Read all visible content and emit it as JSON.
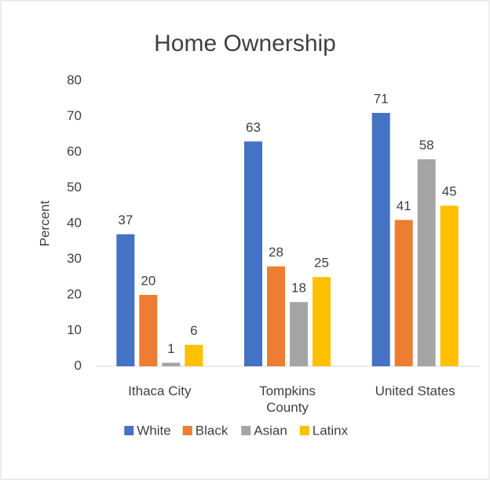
{
  "chart_data": {
    "type": "bar",
    "title": "Home Ownership",
    "y_label": "Percent",
    "categories": [
      "Ithaca City",
      "Tompkins County",
      "United States"
    ],
    "series": [
      {
        "name": "White",
        "color": "#4472c4",
        "values": [
          37,
          63,
          71
        ]
      },
      {
        "name": "Black",
        "color": "#ed7d31",
        "values": [
          20,
          28,
          41
        ]
      },
      {
        "name": "Asian",
        "color": "#a5a5a5",
        "values": [
          1,
          18,
          58
        ]
      },
      {
        "name": "Latinx",
        "color": "#ffc000",
        "values": [
          6,
          25,
          45
        ]
      }
    ],
    "ylim": [
      0,
      80
    ],
    "yticks": [
      0,
      10,
      20,
      30,
      40,
      50,
      60,
      70,
      80
    ],
    "grid": false,
    "legend": "bottom"
  }
}
